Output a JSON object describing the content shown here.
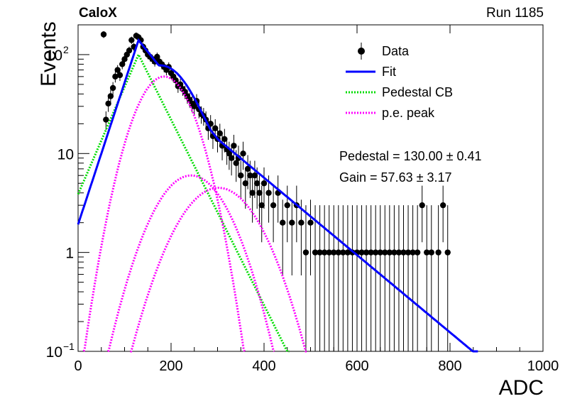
{
  "header": {
    "experiment": "CaloX",
    "run": "Run 1185"
  },
  "annotations": {
    "pedestal_label": "Pedestal",
    "pedestal_value": "130.00",
    "pedestal_error": "0.41",
    "gain_label": "Gain",
    "gain_value": "57.63",
    "gain_error": "3.17"
  },
  "chart_data": {
    "type": "scatter",
    "title": "",
    "xlabel": "ADC",
    "ylabel": "Events",
    "xlim": [
      0,
      1000
    ],
    "ylim": [
      0.1,
      200
    ],
    "ylog": true,
    "x_ticks": [
      "0",
      "200",
      "400",
      "600",
      "800",
      "1000"
    ],
    "y_ticks": [
      {
        "value": 0.1,
        "label": "10",
        "sup": "−1"
      },
      {
        "value": 1,
        "label": "1",
        "sup": ""
      },
      {
        "value": 10,
        "label": "10",
        "sup": ""
      },
      {
        "value": 100,
        "label": "10",
        "sup": "2"
      }
    ],
    "legend": {
      "position": "top-right",
      "entries": [
        {
          "label": "Data",
          "style": "marker",
          "color": "#000000"
        },
        {
          "label": "Fit",
          "style": "solid",
          "color": "#0000ff"
        },
        {
          "label": "Pedestal CB",
          "style": "dotted",
          "color": "#00dd00"
        },
        {
          "label": "p.e. peak",
          "style": "dotted",
          "color": "#ff00ff"
        }
      ]
    },
    "data_points": [
      [
        55,
        160
      ],
      [
        60,
        22
      ],
      [
        65,
        32
      ],
      [
        70,
        38
      ],
      [
        75,
        46
      ],
      [
        80,
        60
      ],
      [
        85,
        70
      ],
      [
        90,
        62
      ],
      [
        95,
        80
      ],
      [
        100,
        90
      ],
      [
        105,
        100
      ],
      [
        110,
        110
      ],
      [
        115,
        140
      ],
      [
        120,
        120
      ],
      [
        125,
        155
      ],
      [
        130,
        150
      ],
      [
        135,
        140
      ],
      [
        140,
        120
      ],
      [
        145,
        110
      ],
      [
        150,
        100
      ],
      [
        155,
        95
      ],
      [
        160,
        90
      ],
      [
        165,
        85
      ],
      [
        170,
        95
      ],
      [
        175,
        85
      ],
      [
        180,
        80
      ],
      [
        185,
        75
      ],
      [
        190,
        70
      ],
      [
        195,
        75
      ],
      [
        200,
        65
      ],
      [
        205,
        60
      ],
      [
        210,
        55
      ],
      [
        215,
        48
      ],
      [
        220,
        50
      ],
      [
        225,
        45
      ],
      [
        230,
        42
      ],
      [
        235,
        38
      ],
      [
        240,
        35
      ],
      [
        245,
        32
      ],
      [
        250,
        30
      ],
      [
        255,
        34
      ],
      [
        260,
        28
      ],
      [
        265,
        25
      ],
      [
        270,
        24
      ],
      [
        275,
        22
      ],
      [
        280,
        18
      ],
      [
        285,
        20
      ],
      [
        290,
        15
      ],
      [
        295,
        18
      ],
      [
        300,
        14
      ],
      [
        305,
        16
      ],
      [
        310,
        12
      ],
      [
        315,
        14
      ],
      [
        320,
        11
      ],
      [
        325,
        10
      ],
      [
        330,
        9
      ],
      [
        335,
        12
      ],
      [
        340,
        8
      ],
      [
        345,
        9
      ],
      [
        350,
        6
      ],
      [
        355,
        10
      ],
      [
        360,
        5
      ],
      [
        365,
        7
      ],
      [
        370,
        6
      ],
      [
        375,
        4
      ],
      [
        380,
        6
      ],
      [
        385,
        5
      ],
      [
        390,
        4
      ],
      [
        395,
        3
      ],
      [
        400,
        5
      ],
      [
        410,
        4
      ],
      [
        420,
        3
      ],
      [
        430,
        4
      ],
      [
        440,
        2
      ],
      [
        450,
        3
      ],
      [
        460,
        2
      ],
      [
        470,
        3
      ],
      [
        480,
        2
      ],
      [
        490,
        1
      ],
      [
        500,
        2
      ],
      [
        510,
        1
      ],
      [
        520,
        1
      ],
      [
        530,
        1
      ],
      [
        540,
        1
      ],
      [
        550,
        1
      ],
      [
        560,
        1
      ],
      [
        570,
        1
      ],
      [
        580,
        1
      ],
      [
        590,
        1
      ],
      [
        600,
        1
      ],
      [
        610,
        1
      ],
      [
        620,
        1
      ],
      [
        630,
        1
      ],
      [
        640,
        1
      ],
      [
        650,
        1
      ],
      [
        660,
        1
      ],
      [
        670,
        1
      ],
      [
        680,
        1
      ],
      [
        690,
        1
      ],
      [
        700,
        1
      ],
      [
        710,
        1
      ],
      [
        720,
        1
      ],
      [
        730,
        1
      ],
      [
        740,
        3
      ],
      [
        750,
        1
      ],
      [
        760,
        1
      ],
      [
        775,
        1
      ],
      [
        785,
        3
      ],
      [
        795,
        1
      ]
    ],
    "pe_components": [
      {
        "norm": 60,
        "mean": 185,
        "sigma": 48
      },
      {
        "norm": 6,
        "mean": 243,
        "sigma": 62
      },
      {
        "norm": 4.5,
        "mean": 302,
        "sigma": 68
      }
    ],
    "fit": {
      "pedestal": {
        "norm": 100,
        "mean": 130,
        "sigma": 35,
        "left_slope": 0.025,
        "tail_slope": 0.0216
      },
      "fit_low_slope": 0.033,
      "fit_high_slope": 0.009
    }
  }
}
